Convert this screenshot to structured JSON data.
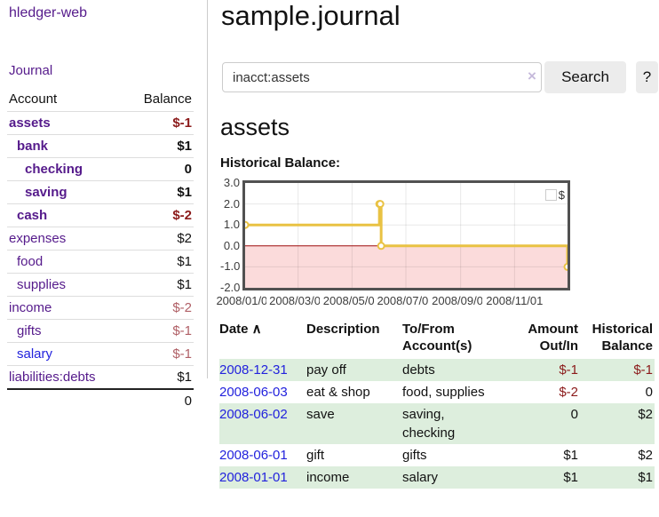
{
  "app": {
    "title": "hledger-web"
  },
  "sidebar": {
    "journal_label": "Journal",
    "accounts_table": {
      "headers": [
        "Account",
        "Balance"
      ],
      "rows": [
        {
          "account": "assets",
          "balance": "$-1",
          "depth": 1,
          "bold": true,
          "link_blue": false
        },
        {
          "account": "bank",
          "balance": "$1",
          "depth": 2,
          "bold": true,
          "link_blue": false
        },
        {
          "account": "checking",
          "balance": "0",
          "depth": 3,
          "bold": true,
          "link_blue": false
        },
        {
          "account": "saving",
          "balance": "$1",
          "depth": 3,
          "bold": true,
          "link_blue": false
        },
        {
          "account": "cash",
          "balance": "$-2",
          "depth": 2,
          "bold": true,
          "link_blue": false
        },
        {
          "account": "expenses",
          "balance": "$2",
          "depth": 1,
          "bold": false,
          "link_blue": false
        },
        {
          "account": "food",
          "balance": "$1",
          "depth": 2,
          "bold": false,
          "link_blue": false
        },
        {
          "account": "supplies",
          "balance": "$1",
          "depth": 2,
          "bold": false,
          "link_blue": false
        },
        {
          "account": "income",
          "balance": "$-2",
          "depth": 1,
          "bold": false,
          "link_blue": false
        },
        {
          "account": "gifts",
          "balance": "$-1",
          "depth": 2,
          "bold": false,
          "link_blue": false
        },
        {
          "account": "salary",
          "balance": "$-1",
          "depth": 2,
          "bold": false,
          "link_blue": true
        },
        {
          "account": "liabilities:debts",
          "balance": "$1",
          "depth": 1,
          "bold": false,
          "link_blue": false
        }
      ],
      "total": "0"
    }
  },
  "main": {
    "title": "sample.journal",
    "search": {
      "value": "inacct:assets",
      "clear_icon": "×",
      "search_label": "Search",
      "help_label": "?"
    },
    "account_heading": "assets",
    "chart_label": "Historical Balance:"
  },
  "chart_data": {
    "type": "line",
    "title": "Historical Balance:",
    "step": true,
    "series": [
      {
        "name": "$",
        "color": "#e9c243",
        "points": [
          [
            "2008-01-01",
            1
          ],
          [
            "2008-06-01",
            2
          ],
          [
            "2008-06-02",
            2
          ],
          [
            "2008-06-03",
            0
          ],
          [
            "2008-12-31",
            -1
          ]
        ]
      }
    ],
    "x_range": [
      "2008-01-01",
      "2008-12-31"
    ],
    "x_ticks": [
      "2008/01/01",
      "2008/03/01",
      "2008/05/01",
      "2008/07/01",
      "2008/09/01",
      "2008/11/01"
    ],
    "y_ticks": [
      "3.0",
      "2.0",
      "1.0",
      "0.0",
      "-1.0",
      "-2.0"
    ],
    "ylim": [
      -2,
      3
    ],
    "grid": true,
    "negative_region_color": "#fbdbdb",
    "zero_line_color": "#9e0b0b",
    "legend": {
      "label": "$",
      "position": "top-right"
    }
  },
  "register_table": {
    "headers": [
      {
        "lines": [
          "Date"
        ],
        "sorted_asc": true,
        "align": "left"
      },
      {
        "lines": [
          "Description"
        ],
        "align": "left"
      },
      {
        "lines": [
          "To/From",
          "Account(s)"
        ],
        "align": "left"
      },
      {
        "lines": [
          "Amount",
          "Out/In"
        ],
        "align": "right"
      },
      {
        "lines": [
          "Historical",
          "Balance"
        ],
        "align": "right"
      }
    ],
    "sort_icon": "∧",
    "rows": [
      {
        "date": "2008-12-31",
        "description": "pay off",
        "accounts": "debts",
        "amount": "$-1",
        "balance": "$-1"
      },
      {
        "date": "2008-06-03",
        "description": "eat & shop",
        "accounts": "food, supplies",
        "amount": "$-2",
        "balance": "0"
      },
      {
        "date": "2008-06-02",
        "description": "save",
        "accounts": "saving, checking",
        "amount": "0",
        "balance": "$2"
      },
      {
        "date": "2008-06-01",
        "description": "gift",
        "accounts": "gifts",
        "amount": "$1",
        "balance": "$2"
      },
      {
        "date": "2008-01-01",
        "description": "income",
        "accounts": "salary",
        "amount": "$1",
        "balance": "$1"
      }
    ]
  },
  "colors": {
    "link_purple": "#551a8b",
    "link_blue": "#2222dd",
    "negative_strong": "#8b1a1a",
    "negative_soft": "#b05f66",
    "row_green": "#ddeedd",
    "chart_line": "#e9c243",
    "chart_negative_fill": "#fbdbdb",
    "chart_zero_line": "#9e0b0b",
    "chart_border": "#515151"
  }
}
